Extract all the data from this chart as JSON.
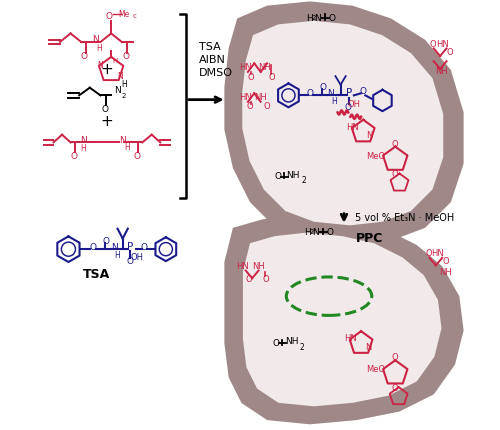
{
  "background": "#ffffff",
  "crimson": "#cc2244",
  "navy": "#1a1a8c",
  "black": "#000000",
  "gray_blob": "#a08888",
  "light_inner": "#f2eaea",
  "green_dashed": "#228822",
  "ppc_label": "PPC",
  "tsa_label": "TSA",
  "reagents_label": "TSA\nAIBN\nDMSO",
  "step2_label": "5 vol % Et₃N · MeOH",
  "fig_width": 5.0,
  "fig_height": 4.3,
  "dpi": 100
}
